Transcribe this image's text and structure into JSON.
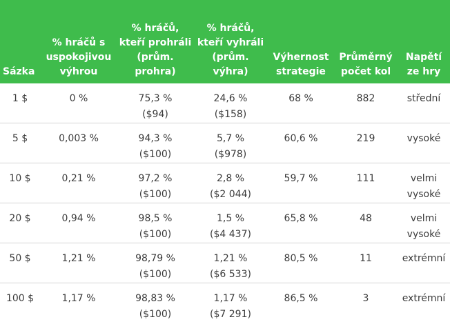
{
  "headers": [
    "Sázka",
    "% hráčů s uspokojivou výhrou",
    "% hráčů, kteří prohráli (prům. prohra)",
    "% hráčů, kteří vyhráli (prům. výhra)",
    "Výhernost strategie",
    "Průměrný počet kol",
    "Napětí ze hry"
  ],
  "rows": [
    {
      "stake": "1 $",
      "satisfied": "0 %",
      "lost": "75,3 %",
      "lost_avg": "($94)",
      "won": "24,6 %",
      "won_avg": "($158)",
      "win_rate": "68 %",
      "rounds": "882",
      "tension": "střední",
      "tension2": ""
    },
    {
      "stake": "5 $",
      "satisfied": "0,003 %",
      "lost": "94,3 %",
      "lost_avg": "($100)",
      "won": "5,7 %",
      "won_avg": "($978)",
      "win_rate": "60,6 %",
      "rounds": "219",
      "tension": "vysoké",
      "tension2": ""
    },
    {
      "stake": "10 $",
      "satisfied": "0,21 %",
      "lost": "97,2 %",
      "lost_avg": "($100)",
      "won": "2,8 %",
      "won_avg": "($2 044)",
      "win_rate": "59,7 %",
      "rounds": "111",
      "tension": "velmi",
      "tension2": "vysoké"
    },
    {
      "stake": "20 $",
      "satisfied": "0,94 %",
      "lost": "98,5 %",
      "lost_avg": "($100)",
      "won": "1,5 %",
      "won_avg": "($4 437)",
      "win_rate": "65,8 %",
      "rounds": "48",
      "tension": "velmi",
      "tension2": "vysoké"
    },
    {
      "stake": "50 $",
      "satisfied": "1,21 %",
      "lost": "98,79 %",
      "lost_avg": "($100)",
      "won": "1,21 %",
      "won_avg": "($6 533)",
      "win_rate": "80,5 %",
      "rounds": "11",
      "tension": "extrémní",
      "tension2": ""
    },
    {
      "stake": "100 $",
      "satisfied": "1,17 %",
      "lost": "98,83 %",
      "lost_avg": "($100)",
      "won": "1,17 %",
      "won_avg": "($7 291)",
      "win_rate": "86,5 %",
      "rounds": "3",
      "tension": "extrémní",
      "tension2": ""
    }
  ],
  "colors": {
    "header_bg": "#3fbc4c",
    "header_text": "#ffffff",
    "row_divider": "#d4d4d4",
    "cell_text": "#3b3b3b"
  }
}
